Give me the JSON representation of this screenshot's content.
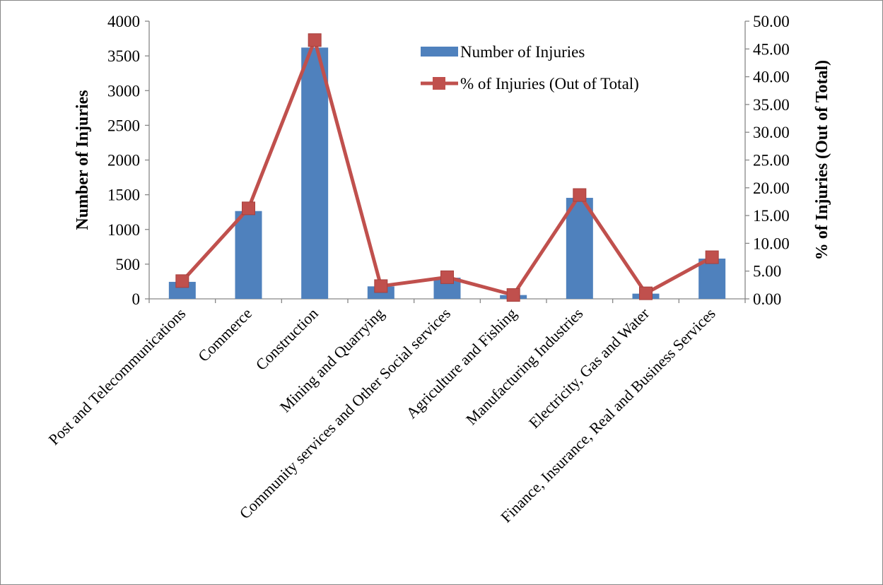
{
  "chart_data": {
    "type": "bar",
    "categories": [
      "Post and Telecommunications",
      "Commerce",
      "Construction",
      "Mining and Quarrying",
      "Community services and Other Social services",
      "Agriculture and Fishing",
      "Manufacturing Industries",
      "Electricity, Gas and Water",
      "Finance, Insurance, Real and Business Services"
    ],
    "series": [
      {
        "name": "Number of Injuries",
        "type": "bar",
        "axis": "left",
        "color": "#4F81BD",
        "values": [
          245,
          1265,
          3620,
          180,
          305,
          55,
          1455,
          75,
          580
        ]
      },
      {
        "name": "% of Injuries (Out of Total)",
        "type": "line",
        "axis": "right",
        "color": "#C0504D",
        "marker": "square",
        "values": [
          3.2,
          16.3,
          46.6,
          2.3,
          3.9,
          0.7,
          18.7,
          1.0,
          7.5
        ]
      }
    ],
    "ylabel": "Number of Injuries",
    "y2label": "% of Injuries (Out of Total)",
    "ylim": [
      0,
      4000
    ],
    "y2lim": [
      0,
      50
    ],
    "yticks": [
      "0",
      "500",
      "1000",
      "1500",
      "2000",
      "2500",
      "3000",
      "3500",
      "4000"
    ],
    "y2ticks": [
      "0.00",
      "5.00",
      "10.00",
      "15.00",
      "20.00",
      "25.00",
      "30.00",
      "35.00",
      "40.00",
      "45.00",
      "50.00"
    ],
    "grid": false,
    "legend": "top-center"
  }
}
